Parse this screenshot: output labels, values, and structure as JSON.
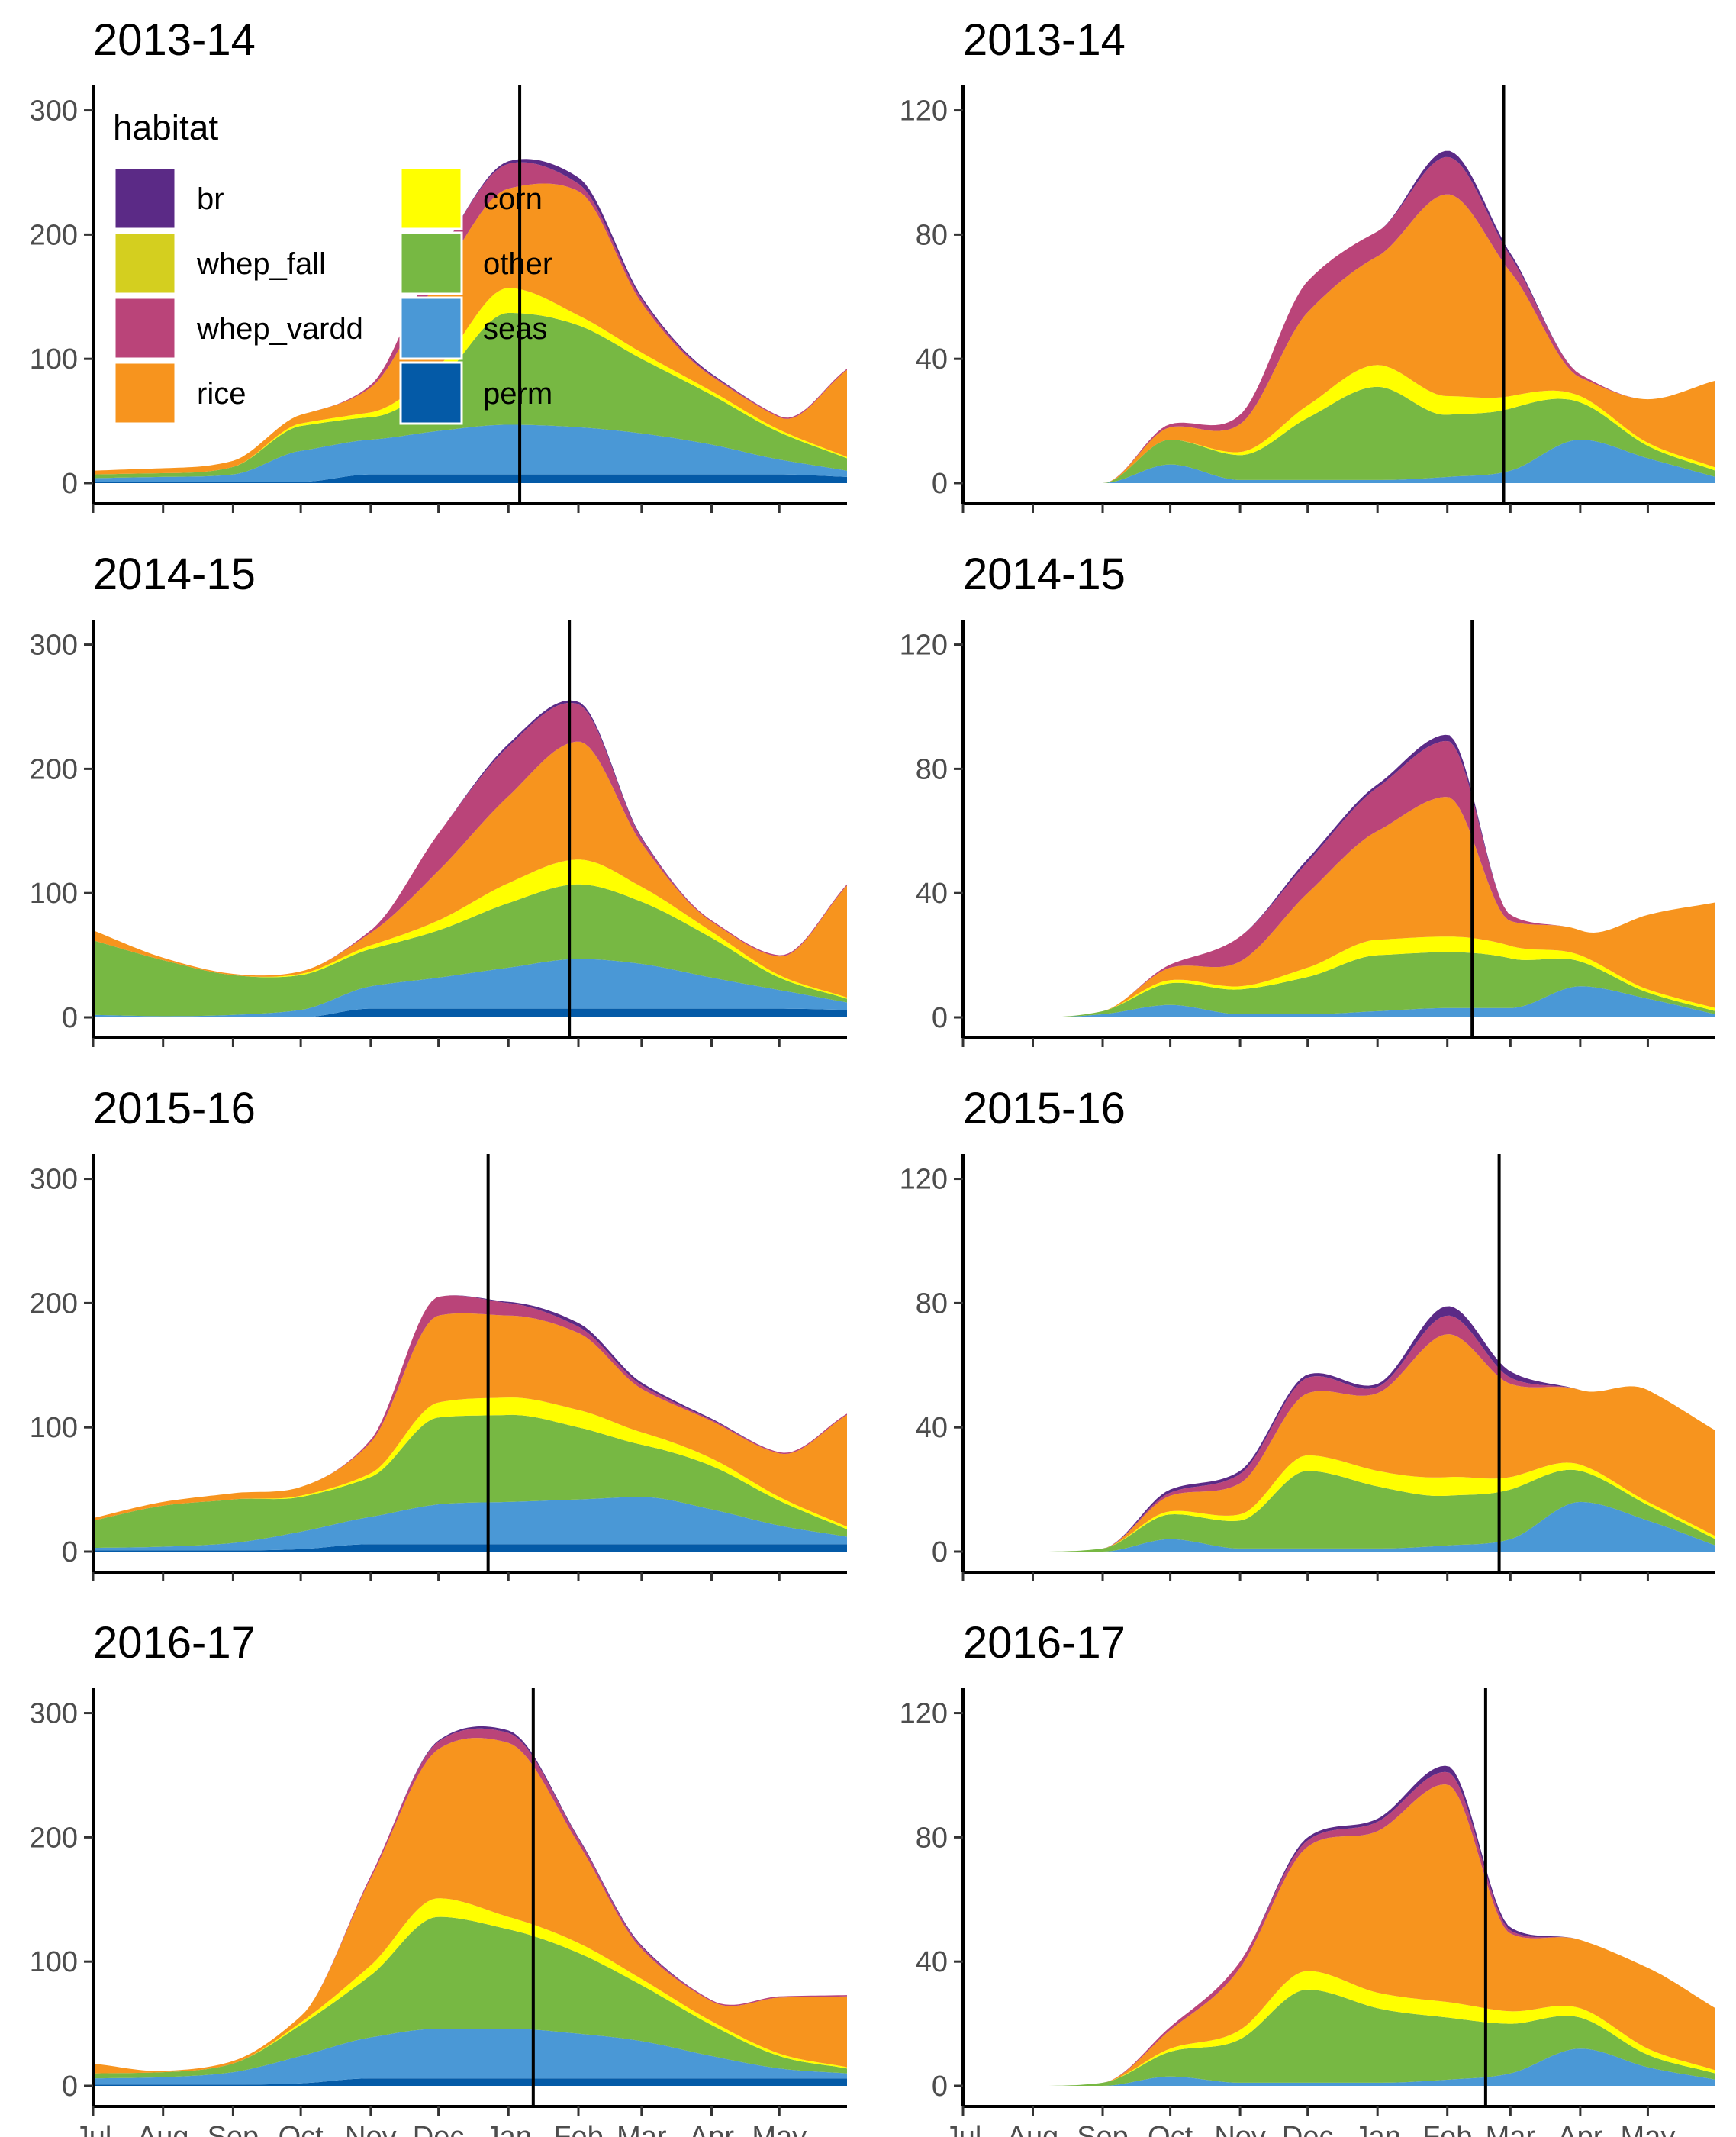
{
  "chart_data": {
    "type": "area",
    "stacked": true,
    "layout": {
      "rows": 4,
      "cols": 2
    },
    "x_axis_labels": [
      "Jul",
      "Aug",
      "Sep",
      "Oct",
      "Nov",
      "Dec",
      "Jan",
      "Feb",
      "Mar",
      "Apr",
      "May"
    ],
    "xlim_days": [
      0,
      334
    ],
    "legend": {
      "title": "habitat",
      "placement": "top-left (inside first panel)",
      "entries": [
        {
          "name": "br",
          "color": "#5b2a86"
        },
        {
          "name": "corn",
          "color": "#ffff00"
        },
        {
          "name": "whep_fall",
          "color": "#d4cf1f"
        },
        {
          "name": "other",
          "color": "#77b843"
        },
        {
          "name": "whep_vardd",
          "color": "#ba4479"
        },
        {
          "name": "seas",
          "color": "#4a98d6"
        },
        {
          "name": "rice",
          "color": "#f7941e"
        },
        {
          "name": "perm",
          "color": "#045aa7"
        }
      ]
    },
    "stack_order_bottom_to_top": [
      "perm",
      "seas",
      "other",
      "whep_fall",
      "corn",
      "rice",
      "whep_vardd",
      "br"
    ],
    "colors": {
      "perm": "#045aa7",
      "seas": "#4a98d6",
      "other": "#77b843",
      "whep_fall": "#d4cf1f",
      "corn": "#ffff00",
      "rice": "#f7941e",
      "whep_vardd": "#ba4479",
      "br": "#5b2a86"
    },
    "x_days": [
      0,
      31,
      62,
      92,
      123,
      153,
      184,
      215,
      243,
      274,
      304,
      334
    ],
    "panels": [
      {
        "title": "2013-14",
        "ylim": [
          0,
          320
        ],
        "yticks": [
          0,
          100,
          200,
          300
        ],
        "vline_day": 189,
        "series": {
          "perm": [
            1,
            1,
            1,
            1,
            7,
            7,
            7,
            7,
            7,
            7,
            7,
            5
          ],
          "seas": [
            3,
            4,
            6,
            25,
            28,
            35,
            40,
            38,
            33,
            24,
            12,
            5
          ],
          "other": [
            3,
            3,
            6,
            20,
            18,
            40,
            90,
            82,
            60,
            40,
            22,
            10
          ],
          "whep_fall": [
            0,
            0,
            0,
            0,
            0,
            0,
            0,
            0,
            0,
            0,
            0,
            0
          ],
          "corn": [
            0,
            0,
            0,
            2,
            4,
            12,
            20,
            8,
            5,
            3,
            2,
            1
          ],
          "rice": [
            3,
            4,
            5,
            7,
            20,
            70,
            80,
            100,
            40,
            12,
            10,
            70
          ],
          "whep_vardd": [
            0,
            0,
            0,
            0,
            2,
            20,
            20,
            6,
            3,
            1,
            1,
            1
          ],
          "br": [
            0,
            0,
            0,
            0,
            0,
            0,
            2,
            5,
            2,
            1,
            0,
            0
          ]
        }
      },
      {
        "title": "2013-14",
        "ylim": [
          0,
          128
        ],
        "yticks": [
          0,
          40,
          80,
          120
        ],
        "vline_day": 240,
        "series": {
          "perm": [
            0,
            0,
            0,
            0,
            0,
            0,
            0,
            0,
            0,
            0,
            0,
            0
          ],
          "seas": [
            0,
            0,
            0,
            6,
            1,
            1,
            1,
            2,
            4,
            14,
            8,
            2
          ],
          "other": [
            0,
            0,
            0,
            8,
            8,
            20,
            30,
            20,
            20,
            12,
            4,
            2
          ],
          "whep_fall": [
            0,
            0,
            0,
            0,
            0,
            0,
            0,
            0,
            0,
            0,
            0,
            0
          ],
          "corn": [
            0,
            0,
            0,
            0,
            1,
            4,
            7,
            6,
            4,
            2,
            1,
            1
          ],
          "rice": [
            0,
            0,
            0,
            4,
            9,
            30,
            35,
            65,
            40,
            6,
            14,
            28
          ],
          "whep_vardd": [
            0,
            0,
            0,
            1,
            3,
            10,
            8,
            12,
            5,
            1,
            0,
            0
          ],
          "br": [
            0,
            0,
            0,
            0,
            0,
            0,
            0,
            2,
            1,
            0,
            0,
            0
          ]
        }
      },
      {
        "title": "2014-15",
        "ylim": [
          0,
          320
        ],
        "yticks": [
          0,
          100,
          200,
          300
        ],
        "vline_day": 211,
        "series": {
          "perm": [
            0,
            0,
            0,
            0,
            7,
            7,
            7,
            7,
            7,
            7,
            7,
            6
          ],
          "seas": [
            2,
            1,
            2,
            6,
            18,
            25,
            33,
            40,
            36,
            25,
            15,
            6
          ],
          "other": [
            60,
            45,
            32,
            28,
            30,
            38,
            52,
            60,
            50,
            32,
            10,
            3
          ],
          "whep_fall": [
            0,
            0,
            0,
            0,
            0,
            0,
            0,
            0,
            0,
            0,
            0,
            0
          ],
          "corn": [
            0,
            0,
            0,
            1,
            3,
            8,
            16,
            20,
            12,
            5,
            2,
            1
          ],
          "rice": [
            8,
            2,
            1,
            2,
            10,
            40,
            70,
            95,
            35,
            8,
            15,
            90
          ],
          "whep_vardd": [
            0,
            0,
            0,
            0,
            2,
            30,
            40,
            30,
            4,
            1,
            1,
            1
          ],
          "br": [
            0,
            0,
            0,
            0,
            0,
            0,
            2,
            2,
            1,
            0,
            0,
            0
          ]
        }
      },
      {
        "title": "2014-15",
        "ylim": [
          0,
          128
        ],
        "yticks": [
          0,
          40,
          80,
          120
        ],
        "vline_day": 226,
        "series": {
          "perm": [
            0,
            0,
            0,
            0,
            0,
            0,
            0,
            0,
            0,
            0,
            0,
            0
          ],
          "seas": [
            0,
            0,
            1,
            4,
            1,
            1,
            2,
            3,
            3,
            10,
            6,
            1
          ],
          "other": [
            0,
            0,
            1,
            7,
            8,
            12,
            18,
            18,
            16,
            8,
            2,
            1
          ],
          "whep_fall": [
            0,
            0,
            0,
            0,
            0,
            0,
            0,
            0,
            0,
            0,
            0,
            0
          ],
          "corn": [
            0,
            0,
            0,
            1,
            1,
            3,
            5,
            5,
            4,
            2,
            1,
            1
          ],
          "rice": [
            0,
            0,
            0,
            4,
            8,
            24,
            35,
            45,
            8,
            8,
            24,
            34
          ],
          "whep_vardd": [
            0,
            0,
            0,
            1,
            8,
            10,
            14,
            18,
            2,
            0,
            0,
            0
          ],
          "br": [
            0,
            0,
            0,
            0,
            0,
            1,
            1,
            2,
            0,
            0,
            0,
            0
          ]
        }
      },
      {
        "title": "2015-16",
        "ylim": [
          0,
          320
        ],
        "yticks": [
          0,
          100,
          200,
          300
        ],
        "vline_day": 175,
        "series": {
          "perm": [
            1,
            1,
            1,
            2,
            6,
            6,
            6,
            6,
            6,
            6,
            6,
            6
          ],
          "seas": [
            2,
            3,
            6,
            14,
            22,
            32,
            34,
            36,
            38,
            28,
            15,
            6
          ],
          "other": [
            22,
            33,
            35,
            28,
            32,
            70,
            70,
            58,
            42,
            35,
            20,
            6
          ],
          "whep_fall": [
            0,
            0,
            0,
            0,
            0,
            0,
            0,
            0,
            0,
            0,
            0,
            0
          ],
          "corn": [
            0,
            0,
            0,
            1,
            3,
            12,
            14,
            14,
            10,
            6,
            3,
            2
          ],
          "rice": [
            2,
            3,
            5,
            7,
            25,
            70,
            66,
            62,
            35,
            30,
            35,
            90
          ],
          "whep_vardd": [
            0,
            0,
            0,
            0,
            2,
            15,
            10,
            5,
            3,
            1,
            1,
            1
          ],
          "br": [
            0,
            0,
            0,
            0,
            0,
            0,
            1,
            3,
            2,
            1,
            0,
            0
          ]
        }
      },
      {
        "title": "2015-16",
        "ylim": [
          0,
          128
        ],
        "yticks": [
          0,
          40,
          80,
          120
        ],
        "vline_day": 238,
        "series": {
          "perm": [
            0,
            0,
            0,
            0,
            0,
            0,
            0,
            0,
            0,
            0,
            0,
            0
          ],
          "seas": [
            0,
            0,
            0,
            4,
            1,
            1,
            1,
            2,
            4,
            16,
            10,
            2
          ],
          "other": [
            0,
            0,
            1,
            8,
            9,
            25,
            20,
            16,
            16,
            10,
            5,
            2
          ],
          "whep_fall": [
            0,
            0,
            0,
            0,
            0,
            0,
            0,
            0,
            0,
            0,
            0,
            0
          ],
          "corn": [
            0,
            0,
            0,
            1,
            2,
            5,
            5,
            6,
            4,
            2,
            1,
            1
          ],
          "rice": [
            0,
            0,
            0,
            5,
            10,
            20,
            25,
            46,
            30,
            24,
            36,
            34
          ],
          "whep_vardd": [
            0,
            0,
            0,
            1,
            3,
            5,
            2,
            6,
            2,
            0,
            0,
            0
          ],
          "br": [
            0,
            0,
            0,
            1,
            1,
            1,
            1,
            3,
            2,
            0,
            0,
            0
          ]
        }
      },
      {
        "title": "2016-17",
        "ylim": [
          0,
          320
        ],
        "yticks": [
          0,
          100,
          200,
          300
        ],
        "vline_day": 195,
        "series": {
          "perm": [
            1,
            1,
            1,
            2,
            6,
            6,
            6,
            6,
            6,
            6,
            6,
            6
          ],
          "seas": [
            5,
            6,
            10,
            22,
            33,
            40,
            40,
            36,
            30,
            18,
            8,
            4
          ],
          "other": [
            4,
            4,
            7,
            25,
            50,
            90,
            80,
            65,
            45,
            25,
            10,
            4
          ],
          "whep_fall": [
            0,
            0,
            0,
            0,
            0,
            0,
            0,
            0,
            0,
            0,
            0,
            0
          ],
          "corn": [
            0,
            0,
            0,
            2,
            8,
            15,
            10,
            8,
            5,
            3,
            2,
            1
          ],
          "rice": [
            8,
            1,
            2,
            5,
            70,
            120,
            140,
            80,
            24,
            16,
            45,
            57
          ],
          "whep_vardd": [
            0,
            0,
            0,
            0,
            2,
            6,
            8,
            4,
            2,
            1,
            1,
            1
          ],
          "br": [
            0,
            0,
            0,
            0,
            0,
            1,
            2,
            1,
            1,
            0,
            0,
            0
          ]
        }
      },
      {
        "title": "2016-17",
        "ylim": [
          0,
          128
        ],
        "yticks": [
          0,
          40,
          80,
          120
        ],
        "vline_day": 232,
        "series": {
          "perm": [
            0,
            0,
            0,
            0,
            0,
            0,
            0,
            0,
            0,
            0,
            0,
            0
          ],
          "seas": [
            0,
            0,
            0,
            3,
            1,
            1,
            1,
            2,
            4,
            12,
            6,
            2
          ],
          "other": [
            0,
            0,
            1,
            8,
            14,
            30,
            24,
            20,
            16,
            10,
            4,
            2
          ],
          "whep_fall": [
            0,
            0,
            0,
            0,
            0,
            0,
            0,
            0,
            0,
            0,
            0,
            0
          ],
          "corn": [
            0,
            0,
            0,
            1,
            3,
            6,
            5,
            5,
            4,
            3,
            2,
            1
          ],
          "rice": [
            0,
            0,
            0,
            6,
            20,
            40,
            52,
            70,
            25,
            22,
            26,
            20
          ],
          "whep_vardd": [
            0,
            0,
            0,
            1,
            2,
            2,
            3,
            4,
            1,
            0,
            0,
            0
          ],
          "br": [
            0,
            0,
            0,
            0,
            0,
            1,
            1,
            2,
            1,
            0,
            0,
            0
          ]
        }
      }
    ]
  }
}
